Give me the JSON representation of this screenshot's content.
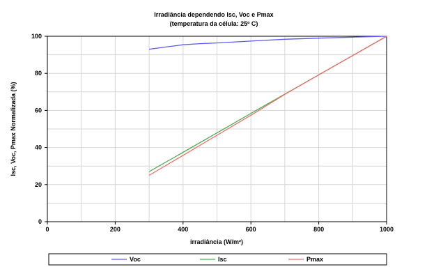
{
  "chart_data": {
    "type": "line",
    "title": "Irradiância dependendo Isc, Voc e Pmax",
    "subtitle": "(temperatura da célula: 25º C)",
    "xlabel": "irradiância (W/m²)",
    "ylabel": "Isc, Voc, Pmax Normalizada (%)",
    "xlim": [
      0,
      1000
    ],
    "ylim": [
      0,
      100
    ],
    "x_ticks": [
      0,
      200,
      400,
      600,
      800,
      1000
    ],
    "y_ticks": [
      0,
      20,
      40,
      60,
      80,
      100
    ],
    "grid": true,
    "legend_position": "bottom",
    "series": [
      {
        "name": "Voc",
        "color": "#5a5af0",
        "x": [
          300,
          350,
          400,
          450,
          500,
          600,
          700,
          800,
          900,
          1000
        ],
        "y": [
          93,
          94.2,
          95.4,
          96.0,
          96.4,
          97.4,
          98.4,
          99.0,
          99.5,
          100
        ]
      },
      {
        "name": "Isc",
        "color": "#4caf50",
        "x": [
          300,
          400,
          500,
          600,
          700,
          800,
          900,
          1000
        ],
        "y": [
          27,
          37.4,
          47.9,
          58.4,
          68.8,
          79.2,
          89.6,
          100
        ]
      },
      {
        "name": "Pmax",
        "color": "#ef6c6c",
        "x": [
          300,
          400,
          500,
          600,
          700,
          800,
          900,
          1000
        ],
        "y": [
          25,
          35.8,
          46.6,
          57.4,
          68.7,
          79.2,
          89.6,
          100
        ]
      }
    ]
  }
}
